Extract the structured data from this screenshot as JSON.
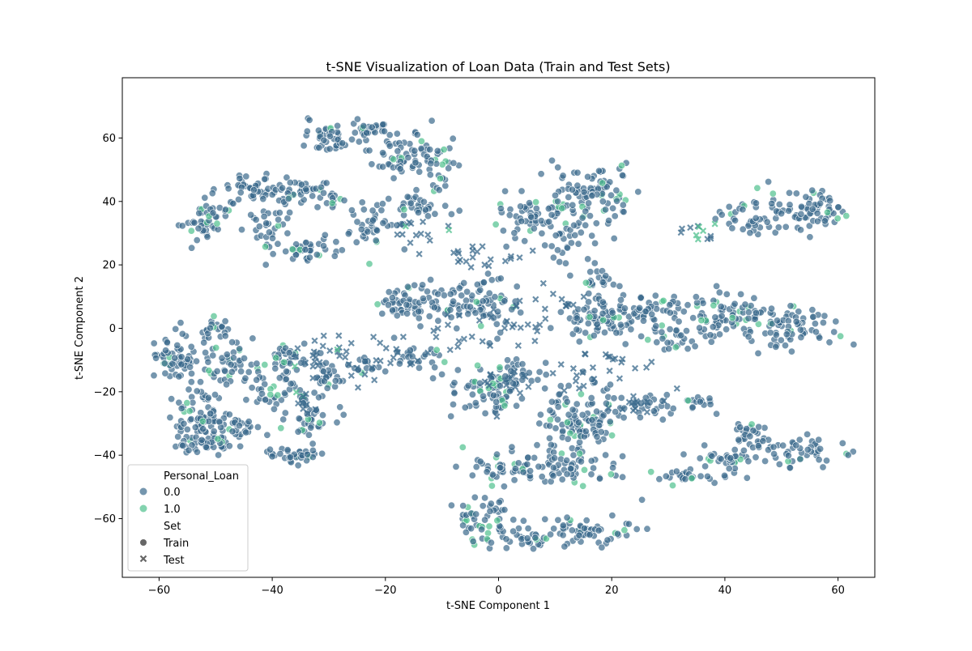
{
  "chart_data": {
    "type": "scatter",
    "title": "t-SNE Visualization of Loan Data (Train and Test Sets)",
    "xlabel": "t-SNE Component 1",
    "ylabel": "t-SNE Component 2",
    "xlim": [
      -66.5,
      66.5
    ],
    "ylim": [
      -78.5,
      79
    ],
    "xticks": [
      -60,
      -40,
      -20,
      0,
      20,
      40,
      60
    ],
    "xtick_labels": [
      "−60",
      "−40",
      "−20",
      "0",
      "20",
      "40",
      "60"
    ],
    "yticks": [
      -60,
      -40,
      -20,
      0,
      20,
      40,
      60
    ],
    "ytick_labels": [
      "−60",
      "−40",
      "−20",
      "0",
      "20",
      "40",
      "60"
    ],
    "grid": false,
    "legend_position": "lower-left",
    "legend": {
      "hue_title": "Personal_Loan",
      "hue_entries": [
        {
          "label": "0.0",
          "color": "#3a6a8c"
        },
        {
          "label": "1.0",
          "color": "#4fc08d"
        }
      ],
      "style_title": "Set",
      "style_entries": [
        {
          "label": "Train",
          "marker": "circle"
        },
        {
          "label": "Test",
          "marker": "x"
        }
      ]
    },
    "colors": {
      "class0": "#3a6a8c",
      "class1": "#4fc08d",
      "marker_edge": "#ffffff"
    },
    "clusters": [
      {
        "set": "Train",
        "center": [
          -57,
          -10
        ],
        "spread": [
          3,
          5
        ],
        "count": 60,
        "positive_share": 0.08
      },
      {
        "set": "Train",
        "center": [
          -53,
          -28
        ],
        "spread": [
          3,
          8
        ],
        "count": 70,
        "positive_share": 0.06
      },
      {
        "set": "Train",
        "center": [
          -52,
          -36
        ],
        "spread": [
          4,
          2
        ],
        "count": 40,
        "positive_share": 0.05
      },
      {
        "set": "Train",
        "center": [
          -47,
          -12
        ],
        "spread": [
          4,
          5
        ],
        "count": 50,
        "positive_share": 0.1
      },
      {
        "set": "Train",
        "center": [
          -50,
          0
        ],
        "spread": [
          2,
          3
        ],
        "count": 25,
        "positive_share": 0.1
      },
      {
        "set": "Train",
        "center": [
          -47,
          -32
        ],
        "spread": [
          3,
          3
        ],
        "count": 30,
        "positive_share": 0.05
      },
      {
        "set": "Train",
        "center": [
          -40,
          -20
        ],
        "spread": [
          3,
          3
        ],
        "count": 30,
        "positive_share": 0.05
      },
      {
        "set": "Train",
        "center": [
          -38,
          -10
        ],
        "spread": [
          3,
          3
        ],
        "count": 35,
        "positive_share": 0.08
      },
      {
        "set": "Train",
        "center": [
          -37,
          -40
        ],
        "spread": [
          3,
          2
        ],
        "count": 35,
        "positive_share": 0.05
      },
      {
        "set": "Train",
        "center": [
          -33,
          -28
        ],
        "spread": [
          3,
          5
        ],
        "count": 40,
        "positive_share": 0.08
      },
      {
        "set": "Train",
        "center": [
          -30,
          -15
        ],
        "spread": [
          2,
          3
        ],
        "count": 25,
        "positive_share": 0.1
      },
      {
        "set": "Train",
        "center": [
          -24,
          -12
        ],
        "spread": [
          3,
          2
        ],
        "count": 15,
        "positive_share": 0.1
      },
      {
        "set": "Train",
        "center": [
          -52,
          33
        ],
        "spread": [
          3,
          4
        ],
        "count": 45,
        "positive_share": 0.08
      },
      {
        "set": "Train",
        "center": [
          -45,
          44
        ],
        "spread": [
          4,
          3
        ],
        "count": 40,
        "positive_share": 0.05
      },
      {
        "set": "Train",
        "center": [
          -40,
          32
        ],
        "spread": [
          3,
          4
        ],
        "count": 30,
        "positive_share": 0.05
      },
      {
        "set": "Train",
        "center": [
          -36,
          44
        ],
        "spread": [
          4,
          3
        ],
        "count": 40,
        "positive_share": 0.05
      },
      {
        "set": "Train",
        "center": [
          -34,
          24
        ],
        "spread": [
          4,
          3
        ],
        "count": 40,
        "positive_share": 0.06
      },
      {
        "set": "Train",
        "center": [
          -30,
          60
        ],
        "spread": [
          3,
          3
        ],
        "count": 40,
        "positive_share": 0.05
      },
      {
        "set": "Train",
        "center": [
          -30,
          42
        ],
        "spread": [
          3,
          2
        ],
        "count": 15,
        "positive_share": 0.1
      },
      {
        "set": "Train",
        "center": [
          -23,
          33
        ],
        "spread": [
          3,
          5
        ],
        "count": 40,
        "positive_share": 0.06
      },
      {
        "set": "Train",
        "center": [
          -22,
          63
        ],
        "spread": [
          3,
          3
        ],
        "count": 30,
        "positive_share": 0.05
      },
      {
        "set": "Train",
        "center": [
          -17,
          56
        ],
        "spread": [
          5,
          5
        ],
        "count": 60,
        "positive_share": 0.08
      },
      {
        "set": "Train",
        "center": [
          -15,
          38
        ],
        "spread": [
          3,
          4
        ],
        "count": 30,
        "positive_share": 0.05
      },
      {
        "set": "Train",
        "center": [
          -11,
          48
        ],
        "spread": [
          3,
          6
        ],
        "count": 30,
        "positive_share": 0.12
      },
      {
        "set": "Train",
        "center": [
          -14,
          8
        ],
        "spread": [
          6,
          4
        ],
        "count": 80,
        "positive_share": 0.06
      },
      {
        "set": "Train",
        "center": [
          -14,
          -11
        ],
        "spread": [
          3,
          3
        ],
        "count": 25,
        "positive_share": 0.1
      },
      {
        "set": "Train",
        "center": [
          -2,
          8
        ],
        "spread": [
          4,
          6
        ],
        "count": 60,
        "positive_share": 0.05
      },
      {
        "set": "Train",
        "center": [
          -2,
          -20
        ],
        "spread": [
          4,
          6
        ],
        "count": 70,
        "positive_share": 0.1
      },
      {
        "set": "Train",
        "center": [
          4,
          -14
        ],
        "spread": [
          3,
          3
        ],
        "count": 25,
        "positive_share": 0.12
      },
      {
        "set": "Train",
        "center": [
          6,
          35
        ],
        "spread": [
          5,
          5
        ],
        "count": 60,
        "positive_share": 0.08
      },
      {
        "set": "Train",
        "center": [
          12,
          28
        ],
        "spread": [
          3,
          5
        ],
        "count": 30,
        "positive_share": 0.05
      },
      {
        "set": "Train",
        "center": [
          15,
          44
        ],
        "spread": [
          5,
          5
        ],
        "count": 50,
        "positive_share": 0.05
      },
      {
        "set": "Train",
        "center": [
          19,
          42
        ],
        "spread": [
          3,
          6
        ],
        "count": 40,
        "positive_share": 0.1
      },
      {
        "set": "Train",
        "center": [
          18,
          15
        ],
        "spread": [
          3,
          3
        ],
        "count": 20,
        "positive_share": 0.1
      },
      {
        "set": "Train",
        "center": [
          18,
          3
        ],
        "spread": [
          6,
          4
        ],
        "count": 70,
        "positive_share": 0.06
      },
      {
        "set": "Train",
        "center": [
          25,
          6
        ],
        "spread": [
          6,
          3
        ],
        "count": 60,
        "positive_share": 0.06
      },
      {
        "set": "Train",
        "center": [
          31,
          -3
        ],
        "spread": [
          4,
          3
        ],
        "count": 30,
        "positive_share": 0.08
      },
      {
        "set": "Train",
        "center": [
          42,
          4
        ],
        "spread": [
          7,
          5
        ],
        "count": 90,
        "positive_share": 0.06
      },
      {
        "set": "Train",
        "center": [
          52,
          0
        ],
        "spread": [
          5,
          5
        ],
        "count": 60,
        "positive_share": 0.06
      },
      {
        "set": "Train",
        "center": [
          12,
          -30
        ],
        "spread": [
          3,
          8
        ],
        "count": 70,
        "positive_share": 0.06
      },
      {
        "set": "Train",
        "center": [
          17,
          -28
        ],
        "spread": [
          3,
          7
        ],
        "count": 50,
        "positive_share": 0.1
      },
      {
        "set": "Train",
        "center": [
          26,
          -25
        ],
        "spread": [
          4,
          3
        ],
        "count": 25,
        "positive_share": 0.08
      },
      {
        "set": "Train",
        "center": [
          35,
          -24
        ],
        "spread": [
          2,
          2
        ],
        "count": 15,
        "positive_share": 0.05
      },
      {
        "set": "Train",
        "center": [
          1,
          -44
        ],
        "spread": [
          4,
          3
        ],
        "count": 30,
        "positive_share": 0.1
      },
      {
        "set": "Train",
        "center": [
          10,
          -45
        ],
        "spread": [
          8,
          4
        ],
        "count": 70,
        "positive_share": 0.08
      },
      {
        "set": "Train",
        "center": [
          -3,
          -60
        ],
        "spread": [
          4,
          5
        ],
        "count": 60,
        "positive_share": 0.1
      },
      {
        "set": "Train",
        "center": [
          5,
          -67
        ],
        "spread": [
          3,
          2
        ],
        "count": 25,
        "positive_share": 0.1
      },
      {
        "set": "Train",
        "center": [
          16,
          -64
        ],
        "spread": [
          5,
          3
        ],
        "count": 60,
        "positive_share": 0.05
      },
      {
        "set": "Train",
        "center": [
          33,
          -47
        ],
        "spread": [
          3,
          2
        ],
        "count": 20,
        "positive_share": 0.05
      },
      {
        "set": "Train",
        "center": [
          40,
          -42
        ],
        "spread": [
          4,
          4
        ],
        "count": 40,
        "positive_share": 0.08
      },
      {
        "set": "Train",
        "center": [
          45,
          -34
        ],
        "spread": [
          3,
          3
        ],
        "count": 25,
        "positive_share": 0.05
      },
      {
        "set": "Train",
        "center": [
          53,
          -39
        ],
        "spread": [
          6,
          3
        ],
        "count": 50,
        "positive_share": 0.06
      },
      {
        "set": "Train",
        "center": [
          46,
          37
        ],
        "spread": [
          4,
          5
        ],
        "count": 50,
        "positive_share": 0.1
      },
      {
        "set": "Train",
        "center": [
          55,
          37
        ],
        "spread": [
          4,
          5
        ],
        "count": 60,
        "positive_share": 0.1
      },
      {
        "set": "Test",
        "center": [
          -32,
          -8
        ],
        "spread": [
          3,
          4
        ],
        "count": 18,
        "positive_share": 0.05
      },
      {
        "set": "Test",
        "center": [
          -28,
          -8
        ],
        "spread": [
          3,
          4
        ],
        "count": 10,
        "positive_share": 0.05
      },
      {
        "set": "Test",
        "center": [
          -34,
          -22
        ],
        "spread": [
          2,
          3
        ],
        "count": 10,
        "positive_share": 0.1
      },
      {
        "set": "Test",
        "center": [
          -24,
          -15
        ],
        "spread": [
          2,
          3
        ],
        "count": 6,
        "positive_share": 0.1
      },
      {
        "set": "Test",
        "center": [
          -18,
          -8
        ],
        "spread": [
          4,
          4
        ],
        "count": 15,
        "positive_share": 0.0
      },
      {
        "set": "Test",
        "center": [
          -13,
          30
        ],
        "spread": [
          4,
          4
        ],
        "count": 15,
        "positive_share": 0.1
      },
      {
        "set": "Test",
        "center": [
          -3,
          23
        ],
        "spread": [
          5,
          3
        ],
        "count": 20,
        "positive_share": 0.0
      },
      {
        "set": "Test",
        "center": [
          3,
          0
        ],
        "spread": [
          5,
          5
        ],
        "count": 20,
        "positive_share": 0.0
      },
      {
        "set": "Test",
        "center": [
          1,
          -17
        ],
        "spread": [
          3,
          3
        ],
        "count": 15,
        "positive_share": 0.0
      },
      {
        "set": "Test",
        "center": [
          12,
          8
        ],
        "spread": [
          3,
          5
        ],
        "count": 12,
        "positive_share": 0.0
      },
      {
        "set": "Test",
        "center": [
          20,
          -12
        ],
        "spread": [
          6,
          5
        ],
        "count": 25,
        "positive_share": 0.05
      },
      {
        "set": "Test",
        "center": [
          26,
          -25
        ],
        "spread": [
          3,
          4
        ],
        "count": 15,
        "positive_share": 0.0
      },
      {
        "set": "Test",
        "center": [
          35,
          30
        ],
        "spread": [
          3,
          2
        ],
        "count": 12,
        "positive_share": 0.3
      },
      {
        "set": "Test",
        "center": [
          -8,
          -2
        ],
        "spread": [
          3,
          4
        ],
        "count": 10,
        "positive_share": 0.0
      }
    ]
  }
}
